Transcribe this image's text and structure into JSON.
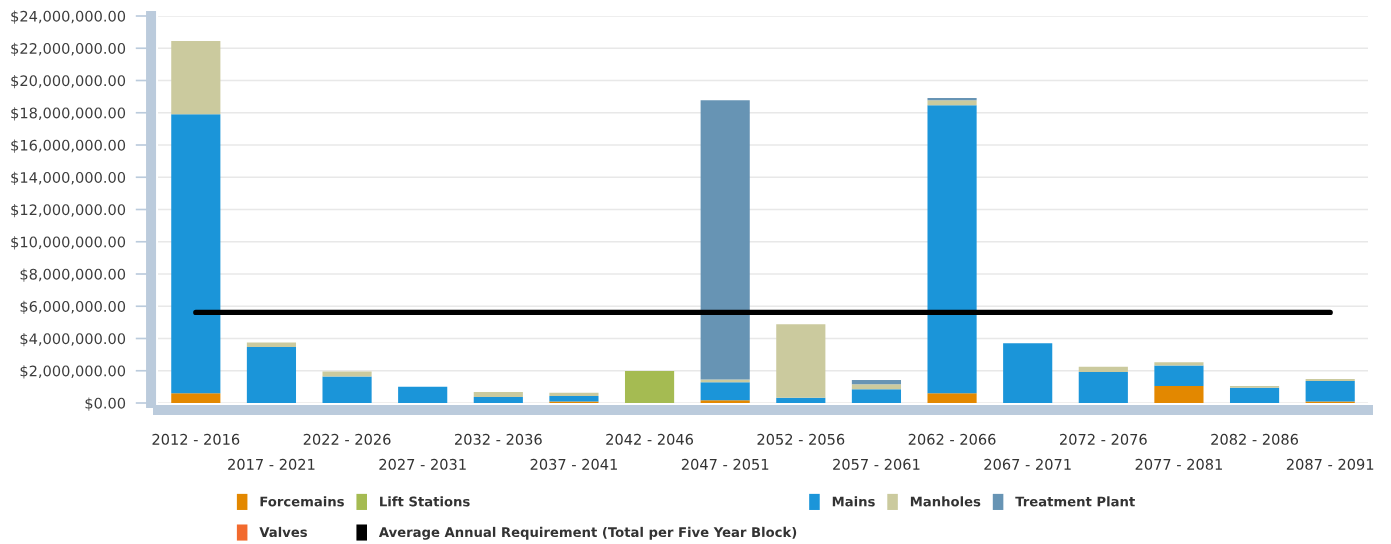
{
  "chart_data": {
    "type": "bar",
    "stacked": true,
    "grid": "y",
    "legend": "bottom",
    "categories": [
      "2012 - 2016",
      "2017 - 2021",
      "2022 - 2026",
      "2027 - 2031",
      "2032 - 2036",
      "2037 - 2041",
      "2042 - 2046",
      "2047 - 2051",
      "2052 - 2056",
      "2057 - 2061",
      "2062 - 2066",
      "2067 - 2071",
      "2072 - 2076",
      "2077 - 2081",
      "2082 - 2086",
      "2087 - 2091"
    ],
    "ylim": [
      0,
      24000000
    ],
    "yticks": [
      {
        "value": 0,
        "label": "$0.00"
      },
      {
        "value": 2000000,
        "label": "$2,000,000.00"
      },
      {
        "value": 4000000,
        "label": "$4,000,000.00"
      },
      {
        "value": 6000000,
        "label": "$6,000,000.00"
      },
      {
        "value": 8000000,
        "label": "$8,000,000.00"
      },
      {
        "value": 10000000,
        "label": "$10,000,000.00"
      },
      {
        "value": 12000000,
        "label": "$12,000,000.00"
      },
      {
        "value": 14000000,
        "label": "$14,000,000.00"
      },
      {
        "value": 16000000,
        "label": "$16,000,000.00"
      },
      {
        "value": 18000000,
        "label": "$18,000,000.00"
      },
      {
        "value": 20000000,
        "label": "$20,000,000.00"
      },
      {
        "value": 22000000,
        "label": "$22,000,000.00"
      },
      {
        "value": 24000000,
        "label": "$24,000,000.00"
      }
    ],
    "series": [
      {
        "name": "Forcemains",
        "color": "#e38800",
        "values": [
          600000,
          null,
          null,
          null,
          null,
          100000,
          null,
          170000,
          null,
          null,
          600000,
          null,
          null,
          1060000,
          null,
          100000
        ]
      },
      {
        "name": "Lift Stations",
        "color": "#a5bb52",
        "values": [
          null,
          null,
          null,
          null,
          null,
          null,
          1990000,
          null,
          null,
          null,
          null,
          null,
          null,
          null,
          null,
          null
        ]
      },
      {
        "name": "Mains",
        "color": "#1b95d9",
        "values": [
          17300000,
          3480000,
          1640000,
          1010000,
          370000,
          330000,
          null,
          1110000,
          330000,
          860000,
          17870000,
          3700000,
          1920000,
          1270000,
          940000,
          1270000
        ]
      },
      {
        "name": "Manholes",
        "color": "#cbca9e",
        "values": [
          4550000,
          270000,
          310000,
          null,
          310000,
          210000,
          null,
          170000,
          4550000,
          300000,
          300000,
          null,
          330000,
          200000,
          120000,
          120000
        ]
      },
      {
        "name": "Treatment Plant",
        "color": "#6794b4",
        "values": [
          null,
          null,
          null,
          null,
          null,
          null,
          null,
          17330000,
          null,
          260000,
          140000,
          null,
          null,
          null,
          null,
          null
        ]
      },
      {
        "name": "Valves",
        "color": "#f26a2e",
        "values": [
          null,
          null,
          null,
          null,
          null,
          null,
          null,
          null,
          null,
          null,
          null,
          null,
          null,
          null,
          null,
          null
        ]
      },
      {
        "name": "Average Annual Requirement (Total per Five Year Block)",
        "type": "line",
        "color": "#000000",
        "values": [
          5620000,
          5620000,
          5620000,
          5620000,
          5620000,
          5620000,
          5620000,
          5620000,
          5620000,
          5620000,
          5620000,
          5620000,
          5620000,
          5620000,
          5620000,
          5620000
        ]
      }
    ]
  }
}
